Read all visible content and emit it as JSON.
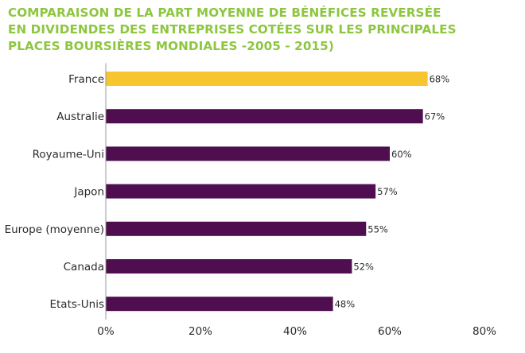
{
  "title_lines": [
    "COMPARAISON DE LA PART MOYENNE DE BÉNÉFICES REVERSÉE",
    "EN DIVIDENDES DES ENTREPRISES COTÉES SUR LES PRINCIPALES",
    "PLACES BOURSIÈRES MONDIALES -2005 - 2015)"
  ],
  "colors": {
    "title": "#8dc63f",
    "highlight": "#f7c530",
    "bar": "#4e0e4f",
    "text": "#2b2b2b"
  },
  "chart_data": {
    "type": "bar",
    "orientation": "horizontal",
    "title": "COMPARAISON DE LA PART MOYENNE DE BÉNÉFICES REVERSÉE EN DIVIDENDES DES ENTREPRISES COTÉES SUR LES PRINCIPALES PLACES BOURSIÈRES MONDIALES -2005 - 2015)",
    "categories": [
      "France",
      "Australie",
      "Royaume-Uni",
      "Japon",
      "Europe (moyenne)",
      "Canada",
      "Etats-Unis"
    ],
    "values": [
      68,
      67,
      60,
      57,
      55,
      52,
      48
    ],
    "value_labels": [
      "68%",
      "67%",
      "60%",
      "57%",
      "55%",
      "52%",
      "48%"
    ],
    "highlight_category": "France",
    "xlim": [
      0,
      80
    ],
    "x_ticks": [
      0,
      20,
      40,
      60,
      80
    ],
    "x_tick_labels": [
      "0%",
      "20%",
      "40%",
      "60%",
      "80%"
    ],
    "grid": false,
    "legend": "none"
  }
}
